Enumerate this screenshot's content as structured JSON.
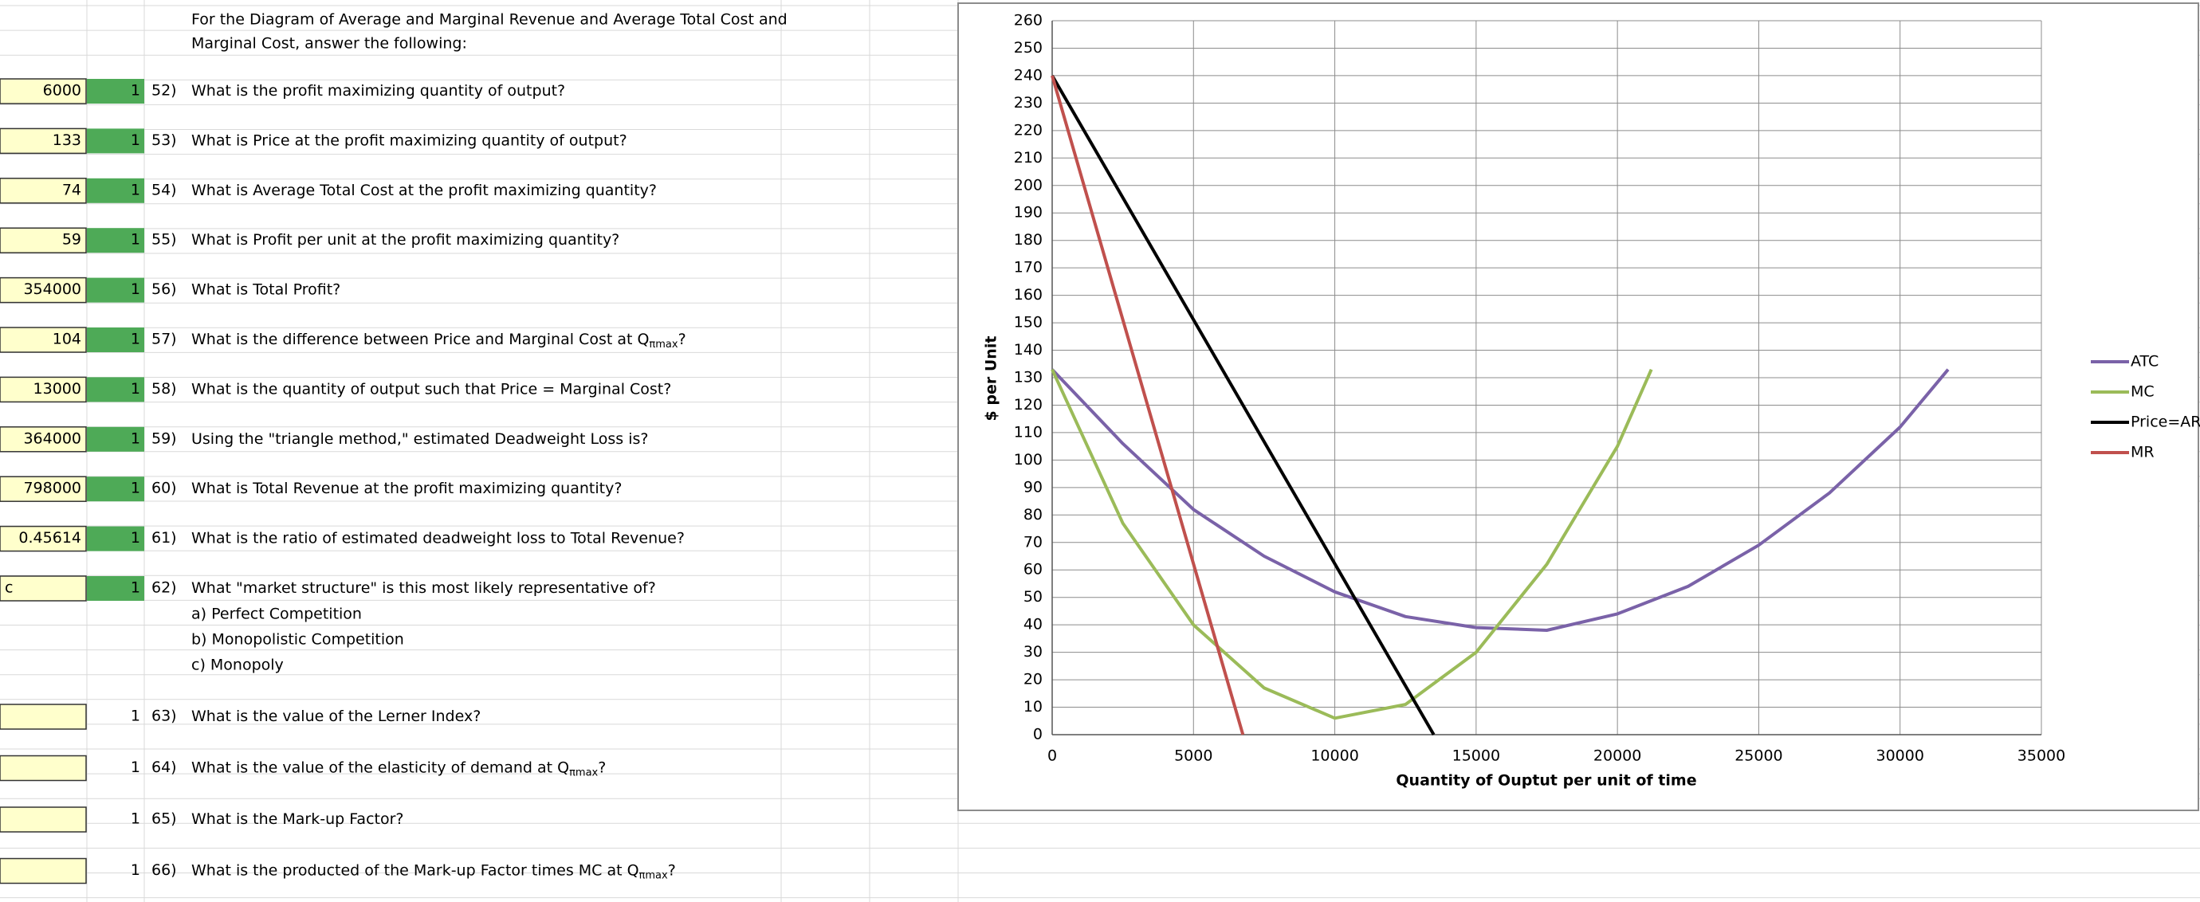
{
  "sheet": {
    "heading": [
      "For the Diagram of Average and Marginal Revenue and Average Total Cost and",
      "Marginal Cost, answer the following:"
    ],
    "heading_color": "#e02020",
    "rows": [
      {
        "answer": 6000,
        "points": 1,
        "points_fill": "#4eaa57",
        "number": "52)",
        "question": "What is the profit maximizing quantity of output?"
      },
      {
        "answer": 133,
        "points": 1,
        "points_fill": "#4eaa57",
        "number": "53)",
        "question": "What is Price at the profit maximizing quantity of output?"
      },
      {
        "answer": 74,
        "points": 1,
        "points_fill": "#4eaa57",
        "number": "54)",
        "question": "What is Average Total Cost at the profit maximizing quantity?"
      },
      {
        "answer": 59,
        "points": 1,
        "points_fill": "#4eaa57",
        "number": "55)",
        "question": "What is Profit per unit at the profit maximizing quantity?"
      },
      {
        "answer": 354000,
        "points": 1,
        "points_fill": "#4eaa57",
        "number": "56)",
        "question": "What is Total Profit?"
      },
      {
        "answer": 104,
        "points": 1,
        "points_fill": "#4eaa57",
        "number": "57)",
        "question": "What is the difference between Price and Marginal Cost at Q",
        "question_sub": "πmax",
        "question_end": "?"
      },
      {
        "answer": 13000,
        "points": 1,
        "points_fill": "#4eaa57",
        "number": "58)",
        "question": "What is the quantity of output such that Price = Marginal Cost?"
      },
      {
        "answer": 364000,
        "points": 1,
        "points_fill": "#4eaa57",
        "number": "59)",
        "question": "Using the \"triangle method,\" estimated Deadweight Loss is?"
      },
      {
        "answer": 798000,
        "points": 1,
        "points_fill": "#4eaa57",
        "number": "60)",
        "question": "What is Total Revenue at the profit maximizing quantity?"
      },
      {
        "answer": 0.45614,
        "points": 1,
        "points_fill": "#4eaa57",
        "number": "61)",
        "question": "What is the ratio of estimated deadweight loss to Total Revenue?"
      },
      {
        "answer": "c",
        "points": 1,
        "points_fill": "#4eaa57",
        "number": "62)",
        "question": "What \"market structure\" is this most likely representative of?",
        "options": [
          "a) Perfect Competition",
          "b) Monopolistic Competition",
          "c) Monopoly"
        ]
      },
      {
        "points": 1,
        "number": "63)",
        "question": "What is the value of the Lerner Index?"
      },
      {
        "points": 1,
        "number": "64)",
        "question": "What is the value of the elasticity of demand at Q",
        "question_sub": "πmax",
        "question_end": "?"
      },
      {
        "points": 1,
        "number": "65)",
        "question": "What is the Mark-up Factor?"
      },
      {
        "points": 1,
        "number": "66)",
        "question": "What is the producted of the Mark-up Factor times MC at Q",
        "question_sub": "πmax",
        "question_end": "?"
      }
    ]
  },
  "chart_data": {
    "type": "line",
    "y_label": "$ per Unit",
    "x_label": "Quantity of Ouptut per unit of time",
    "xlim": [
      0,
      35000
    ],
    "xticks": [
      0,
      5000,
      10000,
      15000,
      20000,
      25000,
      30000,
      35000
    ],
    "ylim": [
      0,
      260
    ],
    "yticks": [
      0,
      10,
      20,
      30,
      40,
      50,
      60,
      70,
      80,
      90,
      100,
      110,
      120,
      130,
      140,
      150,
      160,
      170,
      180,
      190,
      200,
      210,
      220,
      230,
      240,
      250,
      260
    ],
    "grid": true,
    "legend": "right",
    "series": [
      {
        "name": "ATC",
        "color": "#7a62a8",
        "x": [
          0,
          2500,
          5000,
          7500,
          10000,
          12500,
          15000,
          17500,
          20000,
          22500,
          25000,
          27500,
          30000,
          31700
        ],
        "values": [
          133,
          106,
          82,
          65,
          52,
          43,
          39,
          38,
          44,
          54,
          69,
          88,
          112,
          133
        ]
      },
      {
        "name": "MC",
        "color": "#9bbb59",
        "x": [
          0,
          2500,
          5000,
          7500,
          10000,
          12500,
          15000,
          17500,
          20000,
          21200
        ],
        "values": [
          133,
          77,
          40,
          17,
          6,
          11,
          30,
          62,
          105,
          133
        ]
      },
      {
        "name": "Price=AR",
        "color": "#000000",
        "x": [
          0,
          13500
        ],
        "values": [
          240,
          0
        ]
      },
      {
        "name": "MR",
        "color": "#c0504d",
        "x": [
          0,
          6750
        ],
        "values": [
          240,
          0
        ]
      }
    ]
  }
}
